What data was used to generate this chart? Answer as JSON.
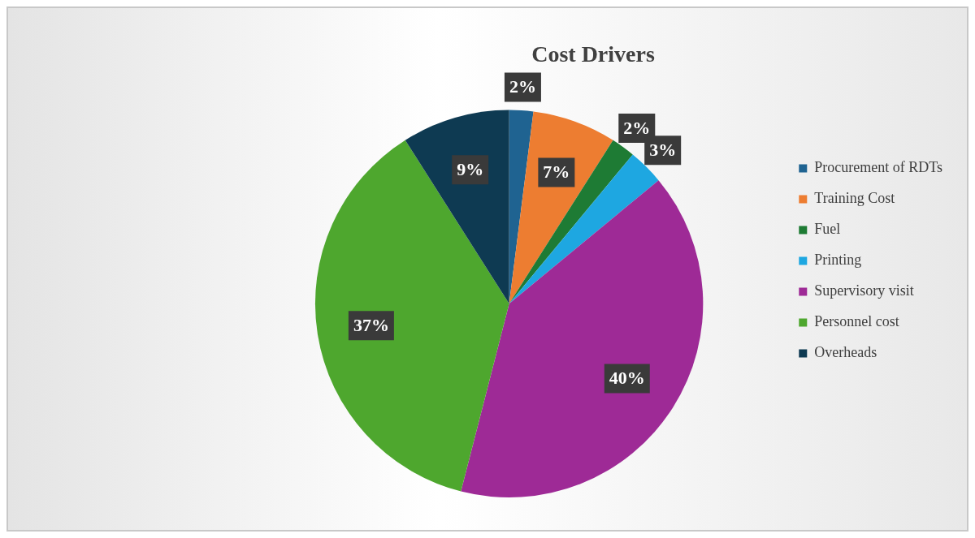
{
  "chart_data": {
    "type": "pie",
    "title": "Cost Drivers",
    "categories": [
      "Procurement of RDTs",
      "Training Cost",
      "Fuel",
      "Printing",
      "Supervisory visit",
      "Personnel cost",
      "Overheads"
    ],
    "values": [
      2,
      7,
      2,
      3,
      40,
      37,
      9
    ],
    "colors": [
      "#1f6391",
      "#ed7d31",
      "#1e7b34",
      "#1ea7e1",
      "#9e2a96",
      "#4ea72e",
      "#0e3a52"
    ],
    "value_labels": [
      "2%",
      "7%",
      "2%",
      "3%",
      "40%",
      "37%",
      "9%"
    ],
    "legend": "right"
  }
}
